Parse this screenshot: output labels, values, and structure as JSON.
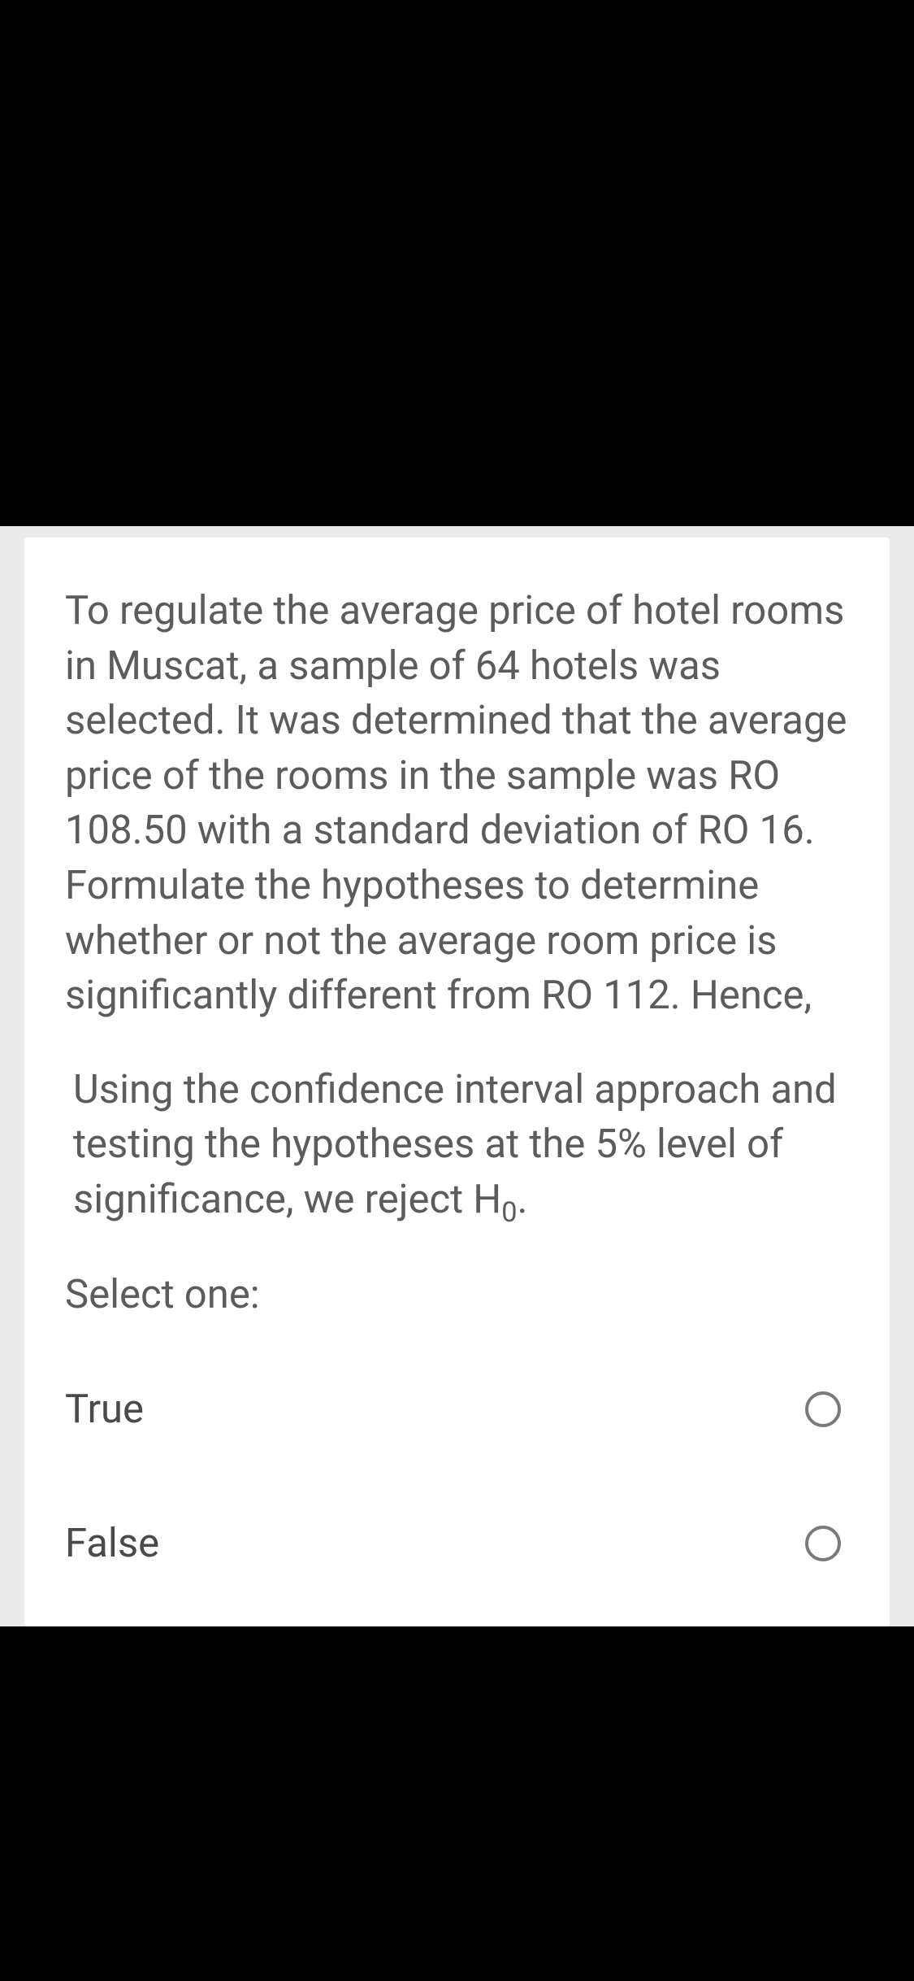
{
  "question": {
    "mainText": "To regulate the average price of hotel rooms in Muscat, a sample of 64 hotels was selected. It was determined that the average price of the rooms in the sample was RO 108.50 with a standard deviation of RO 16. Formulate the hypotheses to determine whether or not the average room price is significantly different from RO 112. Hence,",
    "statementPrefix": " Using the confidence interval approach and testing the hypotheses at the 5% level of significance, we reject H",
    "statementSub": "0",
    "statementSuffix": ".",
    "selectLabel": "Select one:",
    "options": [
      {
        "label": "True",
        "selected": false
      },
      {
        "label": "False",
        "selected": false
      }
    ]
  },
  "colors": {
    "background": "#000000",
    "cardBg": "#ffffff",
    "contentBg": "#ebebeb",
    "textColor": "#5c5c5c",
    "optionColor": "#4a4a4a",
    "radioBorder": "#7a7a7a"
  }
}
